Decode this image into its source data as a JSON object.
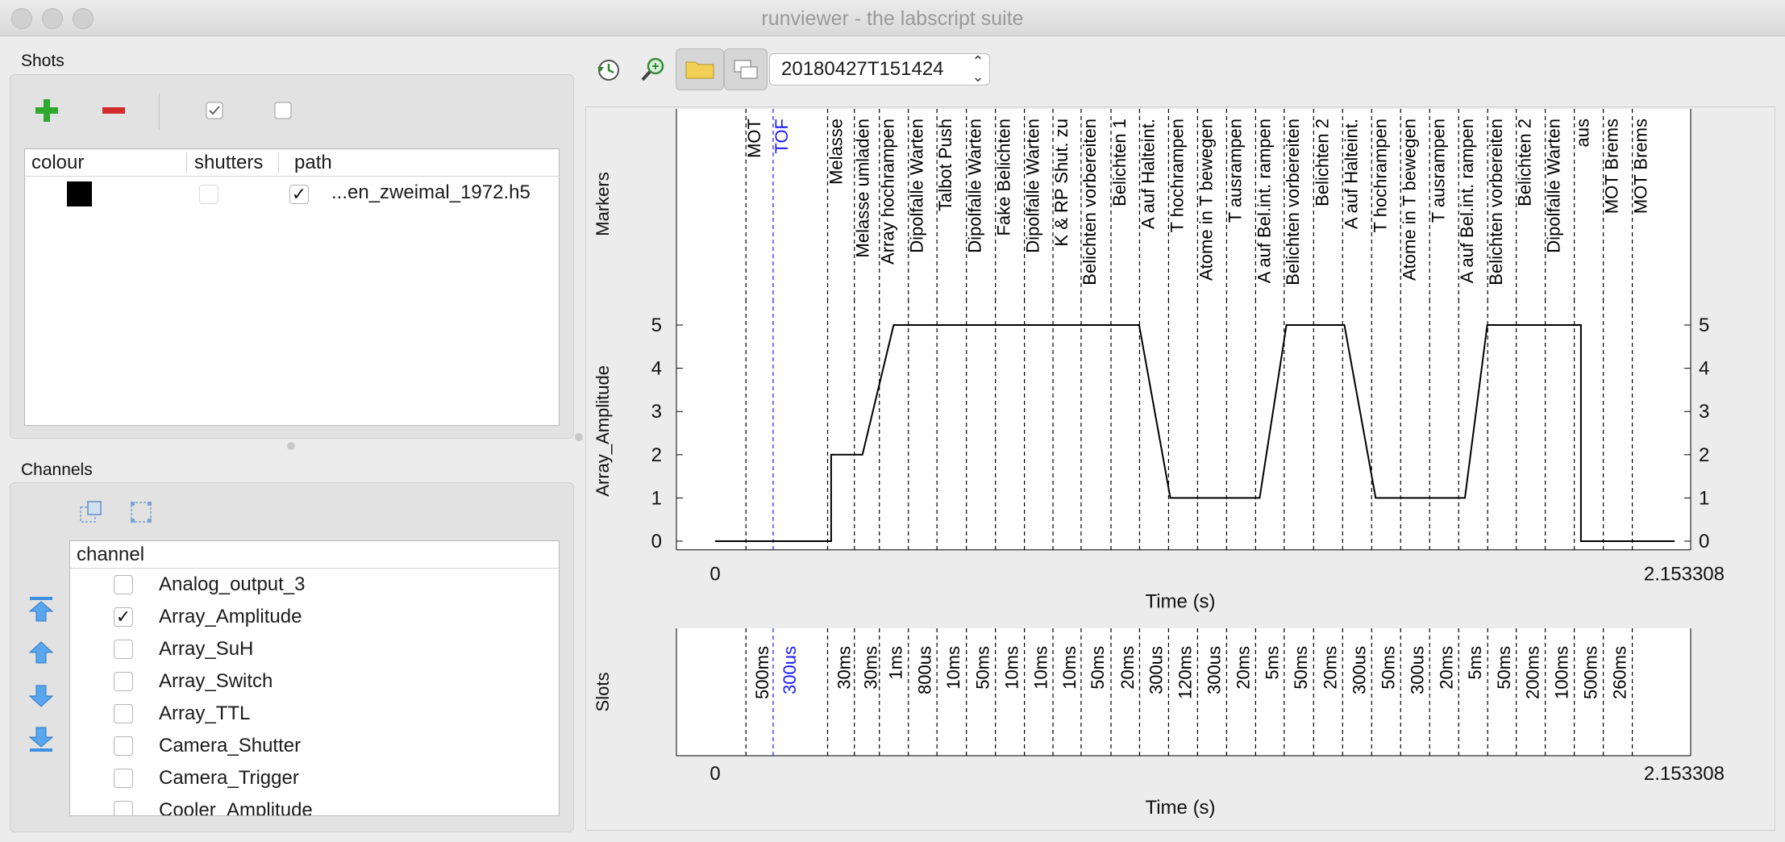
{
  "window": {
    "title": "runviewer - the labscript suite"
  },
  "shots": {
    "section_label": "Shots",
    "headers": [
      "colour",
      "shutters",
      "path"
    ],
    "rows": [
      {
        "colour": "#000000",
        "shutters": false,
        "enabled": true,
        "path": "...en_zweimal_1972.h5"
      }
    ]
  },
  "channels": {
    "section_label": "Channels",
    "header": "channel",
    "items": [
      {
        "label": "Analog_output_3",
        "checked": false
      },
      {
        "label": "Array_Amplitude",
        "checked": true
      },
      {
        "label": "Array_SuH",
        "checked": false
      },
      {
        "label": "Array_Switch",
        "checked": false
      },
      {
        "label": "Array_TTL",
        "checked": false
      },
      {
        "label": "Camera_Shutter",
        "checked": false
      },
      {
        "label": "Camera_Trigger",
        "checked": false
      },
      {
        "label": "Cooler_Amplitude",
        "checked": false
      }
    ]
  },
  "toolbar": {
    "shot_selector": "20180427T151424"
  },
  "markers": {
    "ylabel": "Markers",
    "items": [
      {
        "t": 0.069,
        "label": "MOT",
        "color": "#000000"
      },
      {
        "t": 0.13,
        "label": "TOF",
        "color": "#1a1aff"
      },
      {
        "t": 0.252,
        "label": "Melasse",
        "color": "#000000"
      },
      {
        "t": 0.312,
        "label": "Melasse umladen",
        "color": "#000000"
      },
      {
        "t": 0.368,
        "label": "Array hochrampen",
        "color": "#000000"
      },
      {
        "t": 0.433,
        "label": "Dipolfalle Warten",
        "color": "#000000"
      },
      {
        "t": 0.497,
        "label": "Talbot Push",
        "color": "#000000"
      },
      {
        "t": 0.563,
        "label": "Dipolfalle Warten",
        "color": "#000000"
      },
      {
        "t": 0.628,
        "label": "Fake Belichten",
        "color": "#000000"
      },
      {
        "t": 0.693,
        "label": "Dipolfalle Warten",
        "color": "#000000"
      },
      {
        "t": 0.757,
        "label": "K & RP Shut. zu",
        "color": "#000000"
      },
      {
        "t": 0.82,
        "label": "Belichten vorbereiten",
        "color": "#000000"
      },
      {
        "t": 0.887,
        "label": "Belichten 1",
        "color": "#000000"
      },
      {
        "t": 0.951,
        "label": "A auf Halteint.",
        "color": "#000000"
      },
      {
        "t": 1.016,
        "label": "T hochrampen",
        "color": "#000000"
      },
      {
        "t": 1.081,
        "label": "Atome in T bewegen",
        "color": "#000000"
      },
      {
        "t": 1.146,
        "label": "T ausrampen",
        "color": "#000000"
      },
      {
        "t": 1.211,
        "label": "A auf Bel.int. rampen",
        "color": "#000000"
      },
      {
        "t": 1.275,
        "label": "Belichten vorbereiten",
        "color": "#000000"
      },
      {
        "t": 1.341,
        "label": "Belichten 2",
        "color": "#000000"
      },
      {
        "t": 1.406,
        "label": "A auf Halteint.",
        "color": "#000000"
      },
      {
        "t": 1.471,
        "label": "T hochrampen",
        "color": "#000000"
      },
      {
        "t": 1.536,
        "label": "Atome in T bewegen",
        "color": "#000000"
      },
      {
        "t": 1.601,
        "label": "T ausrampen",
        "color": "#000000"
      },
      {
        "t": 1.666,
        "label": "A auf Bel.int. rampen",
        "color": "#000000"
      },
      {
        "t": 1.731,
        "label": "Belichten vorbereiten",
        "color": "#000000"
      },
      {
        "t": 1.795,
        "label": "Belichten 2",
        "color": "#000000"
      },
      {
        "t": 1.86,
        "label": "Dipolfalle Warten",
        "color": "#000000"
      },
      {
        "t": 1.925,
        "label": "aus",
        "color": "#000000"
      },
      {
        "t": 1.99,
        "label": "MOT Brems",
        "color": "#000000"
      },
      {
        "t": 2.055,
        "label": "MOT Brems",
        "color": "#000000"
      }
    ]
  },
  "chart_data": [
    {
      "type": "line",
      "title": "",
      "xlabel": "Time (s)",
      "ylabel": "Array_Amplitude",
      "xlim": [
        0,
        2.153308
      ],
      "ylim": [
        -0.2,
        5.4
      ],
      "xticks": [
        "0",
        "2.153308"
      ],
      "yticks": [
        0,
        1,
        2,
        3,
        4,
        5
      ],
      "grid": false,
      "x": [
        0,
        0.26,
        0.26,
        0.33,
        0.4,
        0.95,
        1.02,
        1.22,
        1.28,
        1.41,
        1.48,
        1.68,
        1.73,
        1.94,
        1.94,
        2.15
      ],
      "y": [
        0,
        0,
        2,
        2,
        5,
        5,
        1,
        1,
        5,
        5,
        1,
        1,
        5,
        5,
        0,
        0
      ]
    },
    {
      "type": "line",
      "title": "",
      "xlabel": "Time (s)",
      "ylabel": "Slots",
      "xlim": [
        0,
        2.153308
      ],
      "xticks": [
        "0",
        "2.153308"
      ],
      "slot_labels": [
        "500ms",
        "300us",
        "30ms",
        "30ms",
        "1ms",
        "800us",
        "10ms",
        "50ms",
        "10ms",
        "10ms",
        "10ms",
        "50ms",
        "20ms",
        "300us",
        "120ms",
        "300us",
        "20ms",
        "5ms",
        "50ms",
        "20ms",
        "300us",
        "50ms",
        "300us",
        "20ms",
        "5ms",
        "50ms",
        "200ms",
        "100ms",
        "500ms",
        "260ms"
      ]
    }
  ]
}
